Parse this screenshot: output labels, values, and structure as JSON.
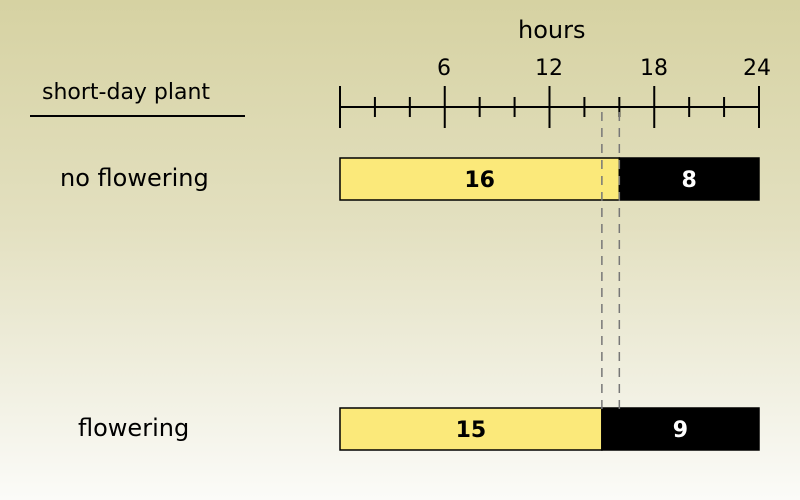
{
  "axis": {
    "title": "hours",
    "range": [
      0,
      24
    ],
    "minor_step": 2,
    "major_step": 6,
    "tick_labels": [
      "6",
      "12",
      "18",
      "24"
    ]
  },
  "plant_type": "short-day plant",
  "rows": [
    {
      "label": "no flowering",
      "light_hours": 16,
      "dark_hours": 8,
      "light_text": "16",
      "dark_text": "8"
    },
    {
      "label": "flowering",
      "light_hours": 15,
      "dark_hours": 9,
      "light_text": "15",
      "dark_text": "9"
    }
  ],
  "critical_lines_hours": [
    15,
    16
  ],
  "colors": {
    "light": "#fbe97a",
    "dark": "#000000",
    "light_text": "#000000",
    "dark_text": "#ffffff",
    "axis": "#000000",
    "dashed": "#777777"
  }
}
